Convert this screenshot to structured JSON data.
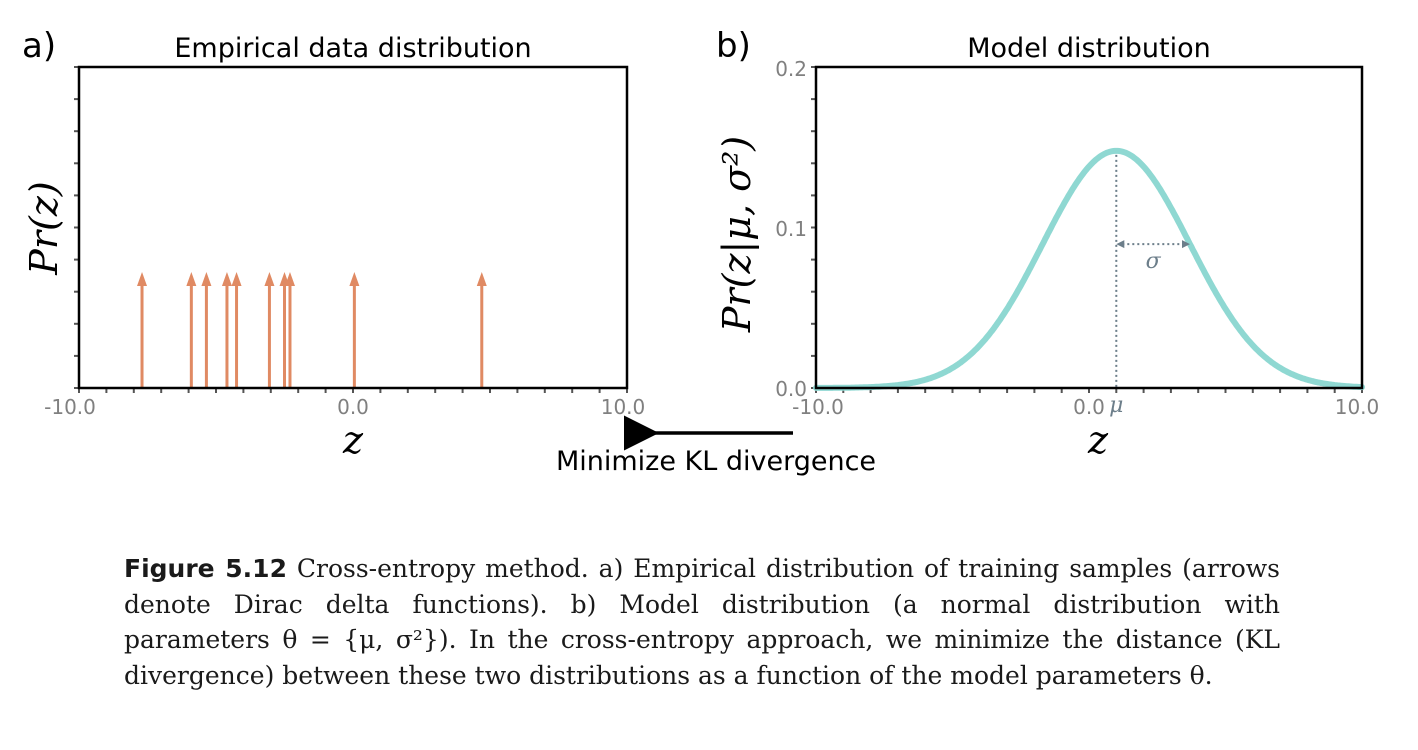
{
  "chart_data": [
    {
      "panel": "a)",
      "type": "scatter",
      "title": "Empirical data distribution",
      "xlabel": "z",
      "ylabel": "Pr(z)",
      "xlim": [
        -10,
        10
      ],
      "xticks": [
        "-10.0",
        "0.0",
        "10.0"
      ],
      "markers": "arrows (Dirac delta functions)",
      "series": [
        {
          "x": [
            -7.7,
            -5.9,
            -5.35,
            -4.6,
            -4.25,
            -3.05,
            -2.5,
            -2.3,
            0.05,
            4.7
          ],
          "color": "#e08a63"
        }
      ]
    },
    {
      "panel": "b)",
      "type": "line",
      "title": "Model distribution",
      "xlabel": "z",
      "ylabel": "Pr(z|μ, σ²)",
      "xlim": [
        -10,
        10
      ],
      "ylim": [
        0,
        0.2
      ],
      "xticks": [
        "-10.0",
        "0.0",
        "10.0"
      ],
      "yticks": [
        "0.0",
        "0.1",
        "0.2"
      ],
      "mu": 1.0,
      "sigma": 2.7,
      "mu_label": "μ",
      "sigma_label": "σ",
      "color": "#8fd8d2"
    }
  ],
  "arrow_label": "Minimize KL divergence",
  "caption": {
    "label": "Figure 5.12",
    "text": " Cross-entropy method. a) Empirical distribution of training samples (arrows denote Dirac delta functions). b) Model distribution (a normal distribution with parameters θ = {μ, σ²}). In the cross-entropy approach, we minimize the distance (KL divergence) between these two distributions as a function of the model parameters θ."
  }
}
